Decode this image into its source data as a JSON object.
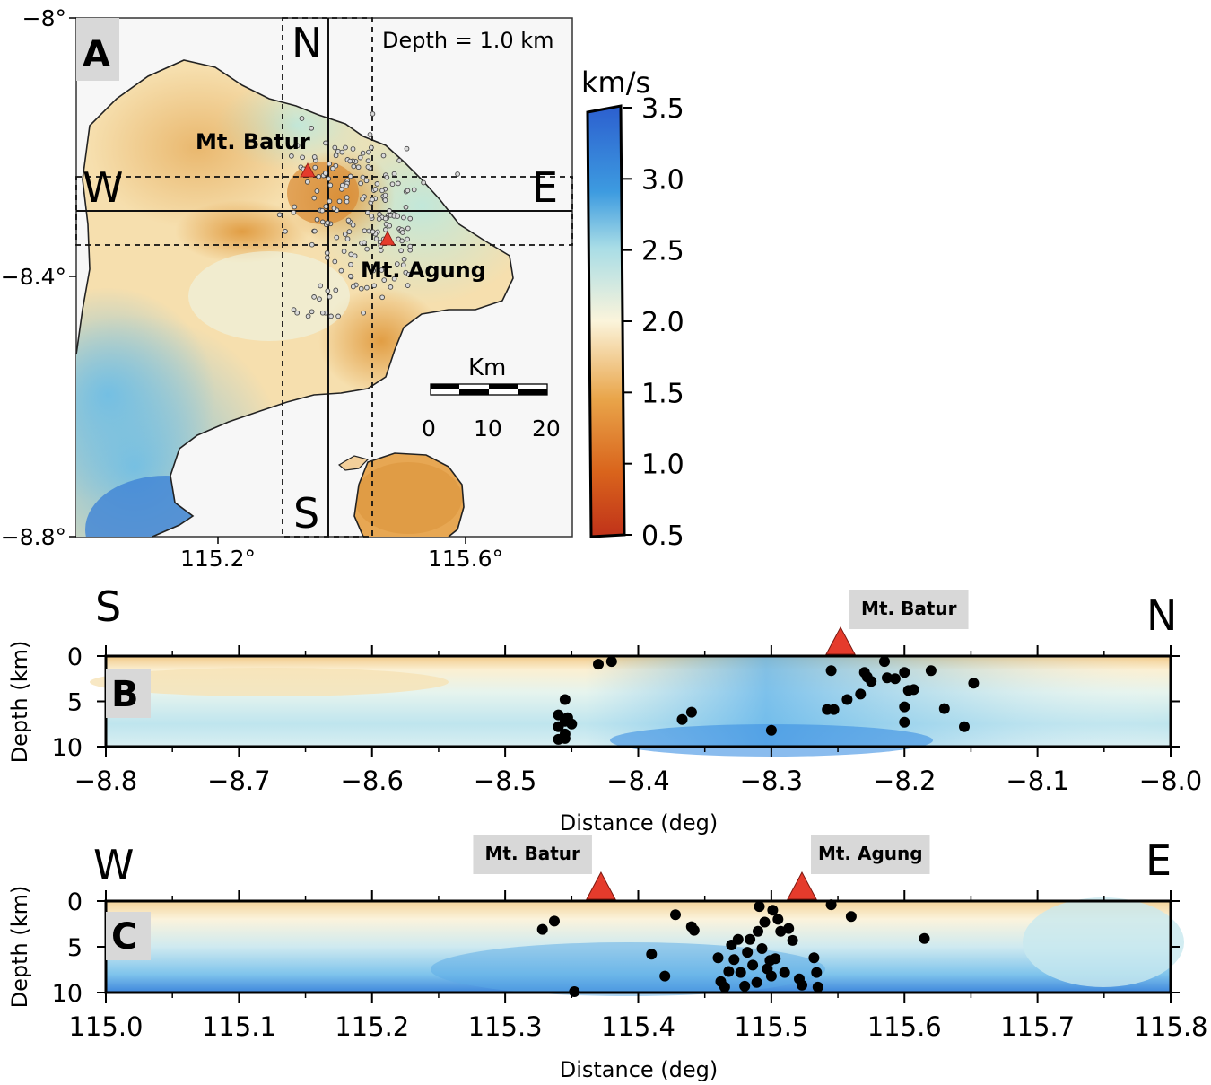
{
  "chart_data": [
    {
      "panel": "A",
      "type": "map",
      "title": "Depth = 1.0 km",
      "x_ticks": [
        "115.2°",
        "115.6°"
      ],
      "y_ticks": [
        "−8°",
        "−8.4°",
        "−8.8°"
      ],
      "lon_range": [
        115.0,
        115.8
      ],
      "lat_range": [
        -8.8,
        -8.0
      ],
      "volcanoes": [
        {
          "name": "Mt. Batur",
          "lon": 115.375,
          "lat": -8.242
        },
        {
          "name": "Mt. Agung",
          "lon": 115.508,
          "lat": -8.342
        }
      ],
      "profiles": [
        {
          "start": "N",
          "end": "S",
          "lon": 115.41
        },
        {
          "start": "W",
          "end": "E",
          "lat": -8.297
        }
      ],
      "scalebar": {
        "title": "Km",
        "labels": [
          "0",
          "10",
          "20"
        ]
      },
      "colorbar": {
        "unit": "km/s",
        "ticks": [
          "3.5",
          "3.0",
          "2.5",
          "2.0",
          "1.5",
          "1.0",
          "0.5"
        ],
        "range": [
          0.5,
          3.5
        ]
      }
    },
    {
      "panel": "B",
      "type": "scatter",
      "left_label": "S",
      "right_label": "N",
      "xlabel": "Distance (deg)",
      "ylabel": "Depth (km)",
      "xlim": [
        -8.8,
        -8.0
      ],
      "ylim": [
        0,
        10
      ],
      "x_ticks": [
        "−8.8",
        "−8.7",
        "−8.6",
        "−8.5",
        "−8.4",
        "−8.3",
        "−8.2",
        "−8.1",
        "−8.0"
      ],
      "y_ticks": [
        "0",
        "5",
        "10"
      ],
      "volcanoes": [
        {
          "name": "Mt. Batur",
          "x": -8.248
        }
      ],
      "events": [
        [
          -8.43,
          0.9
        ],
        [
          -8.42,
          0.6
        ],
        [
          -8.455,
          4.8
        ],
        [
          -8.46,
          6.5
        ],
        [
          -8.455,
          7.2
        ],
        [
          -8.46,
          7.8
        ],
        [
          -8.45,
          7.5
        ],
        [
          -8.455,
          8.6
        ],
        [
          -8.46,
          9.2
        ],
        [
          -8.455,
          9.1
        ],
        [
          -8.453,
          6.8
        ],
        [
          -8.367,
          7.0
        ],
        [
          -8.36,
          6.2
        ],
        [
          -8.3,
          8.2
        ],
        [
          -8.258,
          5.9
        ],
        [
          -8.253,
          5.9
        ],
        [
          -8.255,
          1.6
        ],
        [
          -8.23,
          1.8
        ],
        [
          -8.228,
          2.3
        ],
        [
          -8.225,
          2.8
        ],
        [
          -8.215,
          0.6
        ],
        [
          -8.213,
          2.4
        ],
        [
          -8.207,
          2.5
        ],
        [
          -8.2,
          1.8
        ],
        [
          -8.197,
          3.8
        ],
        [
          -8.193,
          3.7
        ],
        [
          -8.18,
          1.6
        ],
        [
          -8.233,
          4.2
        ],
        [
          -8.243,
          4.8
        ],
        [
          -8.2,
          7.3
        ],
        [
          -8.2,
          5.6
        ],
        [
          -8.17,
          5.8
        ],
        [
          -8.155,
          7.8
        ],
        [
          -8.148,
          3.0
        ]
      ]
    },
    {
      "panel": "C",
      "type": "scatter",
      "left_label": "W",
      "right_label": "E",
      "xlabel": "Distance (deg)",
      "ylabel": "Depth (km)",
      "xlim": [
        115.0,
        115.8
      ],
      "ylim": [
        0,
        10
      ],
      "x_ticks": [
        "115.0",
        "115.1",
        "115.2",
        "115.3",
        "115.4",
        "115.5",
        "115.6",
        "115.7",
        "115.8"
      ],
      "y_ticks": [
        "0",
        "5",
        "10"
      ],
      "volcanoes": [
        {
          "name": "Mt. Batur",
          "x": 115.372
        },
        {
          "name": "Mt. Agung",
          "x": 115.523
        }
      ],
      "events": [
        [
          115.328,
          3.1
        ],
        [
          115.337,
          2.2
        ],
        [
          115.352,
          9.9
        ],
        [
          115.41,
          5.8
        ],
        [
          115.42,
          8.2
        ],
        [
          115.428,
          1.5
        ],
        [
          115.44,
          2.8
        ],
        [
          115.442,
          3.2
        ],
        [
          115.46,
          6.2
        ],
        [
          115.462,
          8.8
        ],
        [
          115.465,
          9.4
        ],
        [
          115.468,
          7.7
        ],
        [
          115.47,
          4.8
        ],
        [
          115.472,
          6.4
        ],
        [
          115.475,
          4.2
        ],
        [
          115.477,
          7.8
        ],
        [
          115.48,
          9.3
        ],
        [
          115.482,
          5.6
        ],
        [
          115.484,
          4.2
        ],
        [
          115.486,
          7.0
        ],
        [
          115.489,
          8.9
        ],
        [
          115.49,
          3.3
        ],
        [
          115.491,
          0.6
        ],
        [
          115.493,
          5.2
        ],
        [
          115.495,
          2.3
        ],
        [
          115.497,
          7.4
        ],
        [
          115.499,
          6.5
        ],
        [
          115.5,
          8.2
        ],
        [
          115.503,
          6.3
        ],
        [
          115.505,
          2.0
        ],
        [
          115.507,
          3.3
        ],
        [
          115.51,
          7.8
        ],
        [
          115.513,
          3.0
        ],
        [
          115.516,
          4.3
        ],
        [
          115.521,
          8.5
        ],
        [
          115.523,
          9.2
        ],
        [
          115.532,
          6.2
        ],
        [
          115.534,
          7.8
        ],
        [
          115.535,
          9.4
        ],
        [
          115.545,
          0.4
        ],
        [
          115.56,
          1.7
        ],
        [
          115.615,
          4.1
        ],
        [
          115.501,
          1.0
        ]
      ]
    }
  ]
}
